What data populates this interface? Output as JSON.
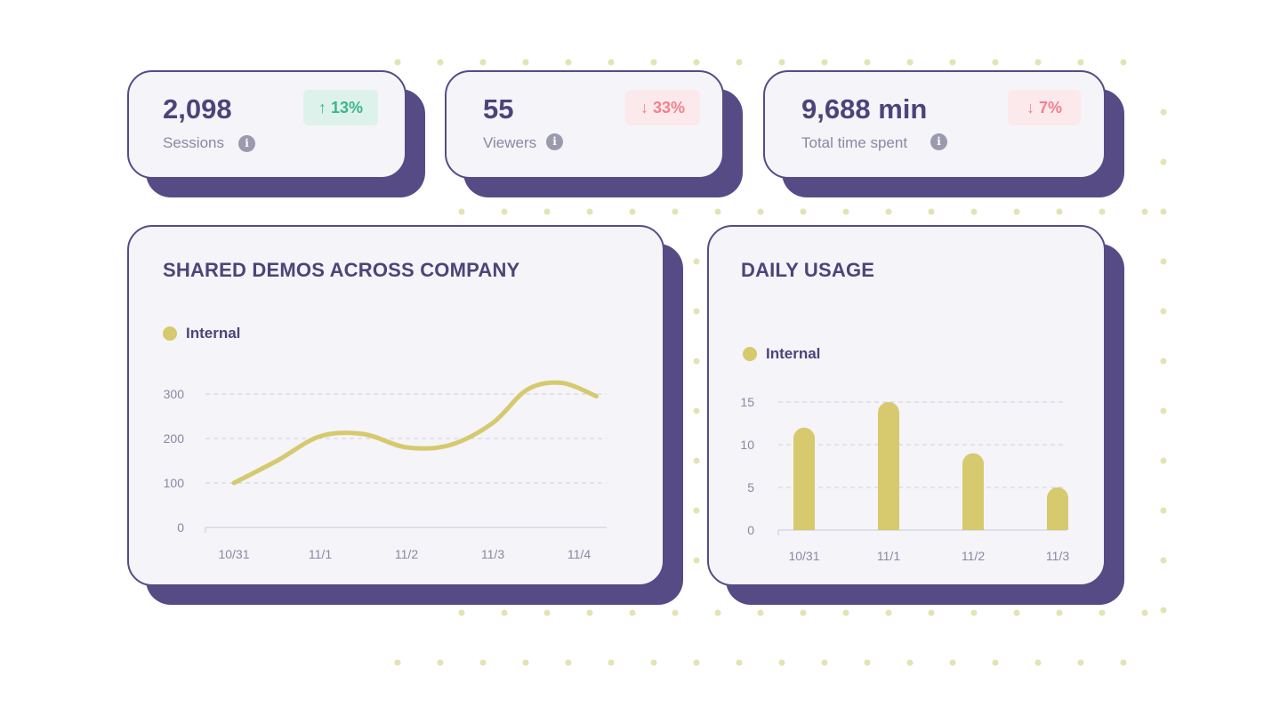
{
  "colors": {
    "accent": "#574b86",
    "text_primary": "#4c4479",
    "series": "#d6c96e",
    "up": "#3db58b",
    "down": "#f2818f",
    "dots": "#e3e3b4"
  },
  "kpis": [
    {
      "value": "2,098",
      "label": "Sessions",
      "change": "13%",
      "direction": "up",
      "arrow": "↑",
      "icon": "info-icon"
    },
    {
      "value": "55",
      "label": "Viewers",
      "change": "33%",
      "direction": "down",
      "arrow": "↓",
      "icon": "info-icon"
    },
    {
      "value": "9,688 min",
      "label": "Total time spent",
      "change": "7%",
      "direction": "down",
      "arrow": "↓",
      "icon": "info-icon"
    }
  ],
  "chart_data": [
    {
      "type": "line",
      "title": "SHARED DEMOS ACROSS COMPANY",
      "categories": [
        "10/31",
        "11/1",
        "11/2",
        "11/3",
        "11/4"
      ],
      "x": [
        0,
        0.5,
        1,
        1.5,
        2,
        2.5,
        3,
        3.4,
        3.8,
        4.2
      ],
      "series": [
        {
          "name": "Internal",
          "values": [
            100,
            150,
            205,
            210,
            180,
            185,
            235,
            310,
            325,
            295
          ]
        }
      ],
      "yticks": [
        0,
        100,
        200,
        300
      ],
      "ylim": [
        0,
        300
      ],
      "grid": true,
      "legend": "top-left"
    },
    {
      "type": "bar",
      "title": "DAILY USAGE",
      "categories": [
        "10/31",
        "11/1",
        "11/2",
        "11/3"
      ],
      "series": [
        {
          "name": "Internal",
          "values": [
            12,
            15,
            9,
            5
          ]
        }
      ],
      "yticks": [
        0,
        5,
        10,
        15
      ],
      "ylim": [
        0,
        15
      ],
      "grid": true,
      "legend": "top-left"
    }
  ]
}
